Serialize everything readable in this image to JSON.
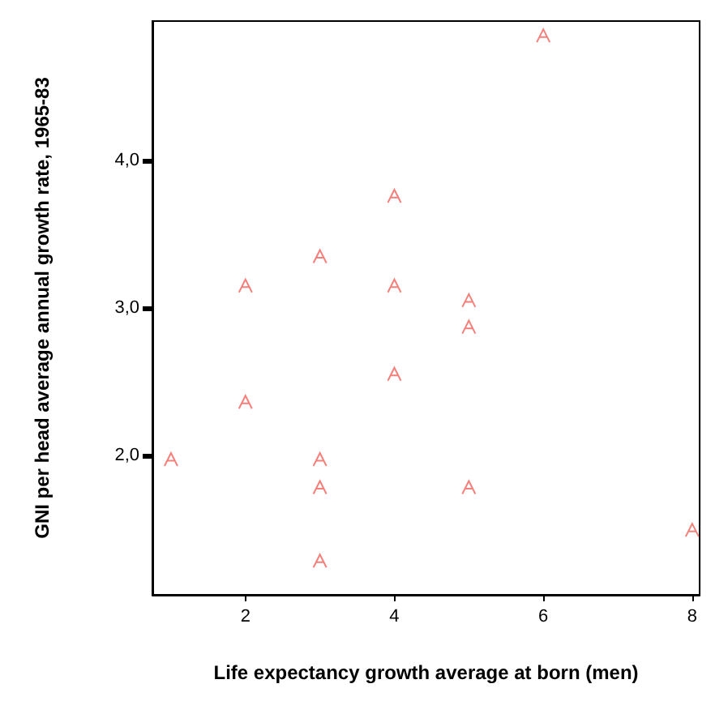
{
  "chart_data": {
    "type": "scatter",
    "xlabel": "Life expectancy growth average at born (men)",
    "ylabel": "GNI per head average annual growth rate, 1965-83",
    "x": [
      6,
      4,
      3,
      2,
      4,
      5,
      5,
      4,
      2,
      1,
      3,
      3,
      5,
      8,
      3
    ],
    "series": [
      {
        "color": "#f0605a",
        "values": [
          4.85,
          3.76,
          3.35,
          3.15,
          3.15,
          3.05,
          2.87,
          2.55,
          2.36,
          1.97,
          1.97,
          1.78,
          1.78,
          1.49,
          1.28
        ]
      }
    ],
    "xlim": [
      0.75,
      8.1
    ],
    "xticks": [
      2,
      4,
      6,
      8
    ],
    "ylim": [
      1.05,
      4.95
    ],
    "yticks": [
      {
        "value": 2,
        "label": "2,0"
      },
      {
        "value": 3,
        "label": "3,0"
      },
      {
        "value": 4,
        "label": "4,0"
      }
    ],
    "grid": false
  }
}
